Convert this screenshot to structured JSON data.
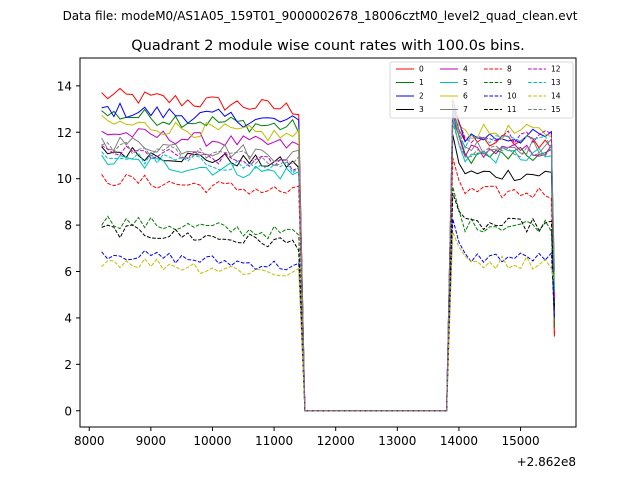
{
  "suptitle": "Data file: modeM0/AS1A05_159T01_9000002678_18006cztM0_level2_quad_clean.evt",
  "chart_data": {
    "type": "line",
    "title": "Quadrant 2 module wise count rates with 100.0s bins.",
    "xlabel": "",
    "ylabel": "",
    "x_offset_label": "+2.862e8",
    "xlim": [
      7850,
      15900
    ],
    "ylim": [
      -0.7,
      15.2
    ],
    "xticks": [
      8000,
      9000,
      10000,
      11000,
      12000,
      13000,
      14000,
      15000
    ],
    "xtick_labels": [
      "8000",
      "9000",
      "10000",
      "11000",
      "12000",
      "13000",
      "14000",
      "15000"
    ],
    "yticks": [
      0,
      2,
      4,
      6,
      8,
      10,
      12,
      14
    ],
    "ytick_labels": [
      "0",
      "2",
      "4",
      "6",
      "8",
      "10",
      "12",
      "14"
    ],
    "grid": false,
    "legend_position": "top-right",
    "segments": {
      "seg1": {
        "start": 8200,
        "end": 11400,
        "step": 100
      },
      "gap": {
        "start": 11500,
        "end": 13800,
        "value": 0
      },
      "seg2": {
        "start": 13900,
        "end": 15500,
        "step": 100
      },
      "edge_out": 15550
    },
    "series": [
      {
        "name": "0",
        "color": "#ff0000",
        "dashed": false,
        "level1": 13.0,
        "level2": 11.6,
        "jitter": 0.35
      },
      {
        "name": "1",
        "color": "#008000",
        "dashed": false,
        "level1": 12.2,
        "level2": 11.0,
        "jitter": 0.35
      },
      {
        "name": "2",
        "color": "#0000ff",
        "dashed": false,
        "level1": 12.4,
        "level2": 11.8,
        "jitter": 0.35
      },
      {
        "name": "3",
        "color": "#000000",
        "dashed": false,
        "level1": 10.6,
        "level2": 10.2,
        "jitter": 0.3
      },
      {
        "name": "4",
        "color": "#bf00bf",
        "dashed": false,
        "level1": 11.4,
        "level2": 11.2,
        "jitter": 0.3
      },
      {
        "name": "5",
        "color": "#00bfbf",
        "dashed": false,
        "level1": 10.2,
        "level2": 11.0,
        "jitter": 0.35
      },
      {
        "name": "6",
        "color": "#bfbf00",
        "dashed": false,
        "level1": 11.8,
        "level2": 12.0,
        "jitter": 0.35
      },
      {
        "name": "7",
        "color": "#808080",
        "dashed": false,
        "level1": 11.0,
        "level2": 11.4,
        "jitter": 0.35
      },
      {
        "name": "8",
        "color": "#ff0000",
        "dashed": true,
        "level1": 9.4,
        "level2": 9.4,
        "jitter": 0.3
      },
      {
        "name": "9",
        "color": "#008000",
        "dashed": true,
        "level1": 7.6,
        "level2": 8.0,
        "jitter": 0.3
      },
      {
        "name": "10",
        "color": "#0000ff",
        "dashed": true,
        "level1": 6.2,
        "level2": 6.6,
        "jitter": 0.25
      },
      {
        "name": "11",
        "color": "#000000",
        "dashed": true,
        "level1": 7.2,
        "level2": 8.0,
        "jitter": 0.3
      },
      {
        "name": "12",
        "color": "#bf00bf",
        "dashed": true,
        "level1": 10.6,
        "level2": 11.8,
        "jitter": 0.3
      },
      {
        "name": "13",
        "color": "#00bfbf",
        "dashed": true,
        "level1": 10.4,
        "level2": 11.6,
        "jitter": 0.3
      },
      {
        "name": "14",
        "color": "#bfbf00",
        "dashed": true,
        "level1": 5.9,
        "level2": 6.4,
        "jitter": 0.3
      },
      {
        "name": "15",
        "color": "#808080",
        "dashed": true,
        "level1": 10.8,
        "level2": 11.2,
        "jitter": 0.3
      }
    ]
  }
}
